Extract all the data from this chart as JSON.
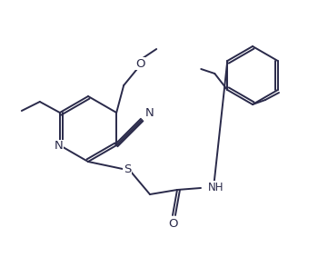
{
  "bg_color": "#ffffff",
  "line_color": "#2a2a4a",
  "lw": 1.4,
  "fs": 8.5,
  "fig_w": 3.5,
  "fig_h": 3.05,
  "dpi": 100,
  "xlim": [
    0,
    350
  ],
  "ylim": [
    0,
    305
  ]
}
